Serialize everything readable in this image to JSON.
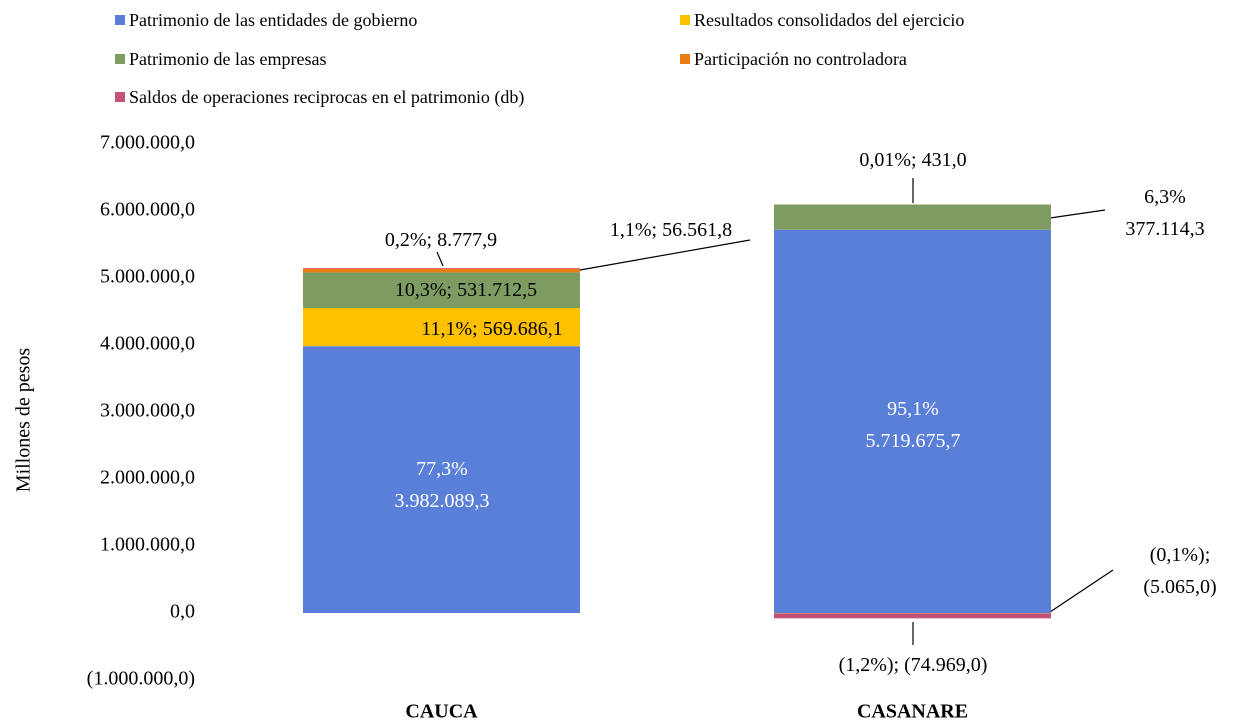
{
  "chart_data": {
    "type": "stacked_bar",
    "ylabel": "Millones  de pesos",
    "categories": [
      "CAUCA",
      "CASANARE"
    ],
    "series": [
      {
        "name": "Patrimonio de las entidades de gobierno",
        "color": "#5a7fd8",
        "values": [
          3982089.3,
          5719675.7
        ],
        "value_labels": [
          "77,3%\n3.982.089,3",
          "95,1%\n5.719.675,7"
        ]
      },
      {
        "name": "Resultados consolidados del ejercicio",
        "color": "#ffc000",
        "values": [
          569686.1,
          -5065.0
        ],
        "value_labels": [
          "11,1%; 569.686,1",
          "(0,1%);\n(5.065,0)"
        ]
      },
      {
        "name": "Patrimonio de las empresas",
        "color": "#7e9c62",
        "values": [
          531712.5,
          377114.3
        ],
        "value_labels": [
          "10,3%; 531.712,5",
          "6,3%\n377.114,3"
        ]
      },
      {
        "name": "Participación no controladora",
        "color": "#e97c14",
        "values": [
          56561.8,
          431.0
        ],
        "value_labels": [
          "1,1%; 56.561,8",
          "0,01%; 431,0"
        ]
      },
      {
        "name": "Saldos de operaciones reciprocas en el patrimonio (db)",
        "color": "#c5527a",
        "values": [
          8777.9,
          -74969.0
        ],
        "value_labels": [
          "0,2%; 8.777,9",
          "(1,2%); (74.969,0)"
        ]
      }
    ],
    "ylim": [
      -1000000,
      7000000
    ],
    "yticks": [
      {
        "value": -1000000,
        "label": "(1.000.000,0)"
      },
      {
        "value": 0,
        "label": "0,0"
      },
      {
        "value": 1000000,
        "label": "1.000.000,0"
      },
      {
        "value": 2000000,
        "label": "2.000.000,0"
      },
      {
        "value": 3000000,
        "label": "3.000.000,0"
      },
      {
        "value": 4000000,
        "label": "4.000.000,0"
      },
      {
        "value": 5000000,
        "label": "5.000.000,0"
      },
      {
        "value": 6000000,
        "label": "6.000.000,0"
      },
      {
        "value": 7000000,
        "label": "7.000.000,0"
      }
    ],
    "grid": false
  }
}
